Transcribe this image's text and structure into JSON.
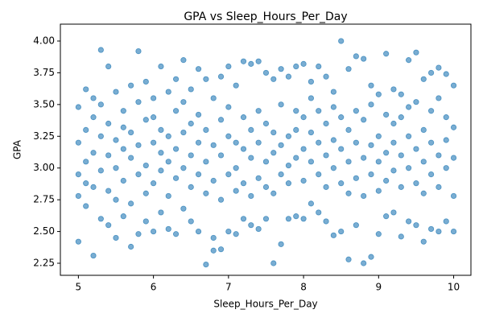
{
  "chart_data": {
    "type": "scatter",
    "title": "GPA vs Sleep_Hours_Per_Day",
    "x_label": "Sleep_Hours_Per_Day",
    "y_label": "GPA",
    "color": "#1f77b4",
    "grid": false,
    "xlim": [
      4.76,
      10.23
    ],
    "ylim": [
      2.155,
      4.133
    ],
    "xticks": [
      5,
      6,
      7,
      8,
      9,
      10
    ],
    "yticks": [
      2.25,
      {
        "value": 2.5,
        "label": "2.50"
      },
      2.75,
      {
        "value": 3.0,
        "label": "3.00"
      },
      3.25,
      {
        "value": 3.5,
        "label": "3.50"
      },
      3.75,
      {
        "value": 4.0,
        "label": "4.00"
      }
    ],
    "x": [
      5.0,
      5.0,
      5.0,
      5.0,
      5.0,
      5.1,
      5.1,
      5.1,
      5.1,
      5.1,
      5.2,
      5.2,
      5.2,
      5.2,
      5.2,
      5.3,
      5.3,
      5.3,
      5.3,
      5.3,
      5.4,
      5.4,
      5.4,
      5.4,
      5.4,
      5.5,
      5.5,
      5.5,
      5.5,
      5.5,
      5.6,
      5.6,
      5.6,
      5.6,
      5.6,
      5.7,
      5.7,
      5.7,
      5.7,
      5.7,
      5.8,
      5.8,
      5.8,
      5.8,
      5.8,
      5.9,
      5.9,
      5.9,
      5.9,
      5.9,
      6.0,
      6.0,
      6.0,
      6.0,
      6.0,
      6.1,
      6.1,
      6.1,
      6.1,
      6.1,
      6.2,
      6.2,
      6.2,
      6.2,
      6.2,
      6.3,
      6.3,
      6.3,
      6.3,
      6.3,
      6.4,
      6.4,
      6.4,
      6.4,
      6.4,
      6.5,
      6.5,
      6.5,
      6.5,
      6.5,
      6.6,
      6.6,
      6.6,
      6.6,
      6.6,
      6.7,
      6.7,
      6.7,
      6.7,
      6.7,
      6.8,
      6.8,
      6.8,
      6.8,
      6.8,
      6.9,
      6.9,
      6.9,
      6.9,
      6.9,
      7.0,
      7.0,
      7.0,
      7.0,
      7.0,
      7.1,
      7.1,
      7.1,
      7.1,
      7.1,
      7.2,
      7.2,
      7.2,
      7.2,
      7.2,
      7.3,
      7.3,
      7.3,
      7.3,
      7.3,
      7.4,
      7.4,
      7.4,
      7.4,
      7.4,
      7.5,
      7.5,
      7.5,
      7.5,
      7.5,
      7.6,
      7.6,
      7.6,
      7.6,
      7.6,
      7.7,
      7.7,
      7.7,
      7.7,
      7.7,
      7.8,
      7.8,
      7.8,
      7.8,
      7.8,
      7.9,
      7.9,
      7.9,
      7.9,
      7.9,
      8.0,
      8.0,
      8.0,
      8.0,
      8.0,
      8.1,
      8.1,
      8.1,
      8.1,
      8.1,
      8.2,
      8.2,
      8.2,
      8.2,
      8.2,
      8.3,
      8.3,
      8.3,
      8.3,
      8.3,
      8.4,
      8.4,
      8.4,
      8.4,
      8.4,
      8.5,
      8.5,
      8.5,
      8.5,
      8.5,
      8.6,
      8.6,
      8.6,
      8.6,
      8.6,
      8.7,
      8.7,
      8.7,
      8.7,
      8.7,
      8.8,
      8.8,
      8.8,
      8.8,
      8.8,
      8.9,
      8.9,
      8.9,
      8.9,
      8.9,
      9.0,
      9.0,
      9.0,
      9.0,
      9.0,
      9.1,
      9.1,
      9.1,
      9.1,
      9.1,
      9.2,
      9.2,
      9.2,
      9.2,
      9.2,
      9.3,
      9.3,
      9.3,
      9.3,
      9.3,
      9.4,
      9.4,
      9.4,
      9.4,
      9.4,
      9.5,
      9.5,
      9.5,
      9.5,
      9.5,
      9.6,
      9.6,
      9.6,
      9.6,
      9.6,
      9.7,
      9.7,
      9.7,
      9.7,
      9.7,
      9.8,
      9.8,
      9.8,
      9.8,
      9.8,
      9.9,
      9.9,
      9.9,
      9.9,
      9.9,
      10.0,
      10.0,
      10.0,
      10.0,
      10.0
    ],
    "values": [
      2.42,
      2.95,
      3.2,
      3.48,
      2.78,
      3.62,
      3.05,
      2.7,
      3.3,
      2.88,
      2.31,
      3.55,
      3.12,
      2.85,
      3.4,
      3.93,
      2.6,
      3.25,
      2.98,
      3.5,
      3.8,
      2.55,
      3.1,
      3.35,
      2.82,
      2.45,
      3.6,
      3.0,
      3.22,
      2.75,
      2.62,
      3.45,
      3.15,
      2.9,
      3.32,
      2.38,
      3.65,
      3.08,
      2.72,
      3.28,
      3.92,
      2.48,
      3.18,
      2.95,
      3.52,
      3.68,
      2.58,
      3.02,
      3.38,
      2.8,
      2.5,
      3.55,
      3.2,
      2.88,
      3.4,
      3.8,
      2.65,
      3.12,
      2.98,
      3.3,
      2.52,
      3.6,
      3.05,
      3.25,
      2.78,
      3.7,
      2.48,
      3.15,
      2.92,
      3.45,
      3.85,
      2.68,
      3.28,
      3.0,
      3.52,
      2.58,
      3.62,
      3.1,
      2.85,
      3.35,
      2.5,
      3.78,
      3.2,
      2.95,
      3.42,
      2.24,
      3.7,
      3.05,
      2.8,
      3.3,
      2.35,
      2.45,
      3.55,
      3.18,
      2.9,
      2.36,
      3.72,
      3.1,
      2.75,
      3.38,
      3.8,
      2.5,
      3.25,
      2.95,
      3.48,
      2.48,
      3.65,
      3.0,
      3.2,
      2.82,
      3.84,
      2.6,
      3.15,
      2.88,
      3.4,
      3.82,
      2.55,
      3.08,
      3.3,
      2.78,
      3.84,
      2.52,
      3.2,
      2.92,
      3.45,
      3.75,
      2.6,
      3.05,
      3.35,
      2.85,
      2.25,
      3.7,
      3.12,
      2.8,
      3.28,
      2.4,
      3.78,
      3.18,
      2.95,
      3.5,
      2.6,
      3.72,
      3.02,
      3.25,
      2.88,
      3.8,
      2.62,
      3.3,
      3.08,
      3.45,
      3.82,
      2.6,
      3.15,
      2.9,
      3.4,
      3.68,
      2.72,
      3.05,
      3.28,
      3.55,
      3.8,
      2.65,
      3.2,
      2.95,
      3.45,
      3.72,
      2.58,
      3.1,
      2.85,
      3.35,
      2.47,
      3.6,
      3.22,
      3.0,
      3.48,
      4.0,
      2.5,
      3.15,
      2.88,
      3.4,
      2.28,
      3.78,
      3.05,
      3.3,
      2.8,
      3.88,
      2.55,
      3.2,
      2.92,
      3.45,
      2.25,
      3.86,
      3.08,
      2.78,
      3.38,
      2.3,
      3.65,
      3.18,
      2.95,
      3.5,
      2.48,
      3.58,
      3.05,
      3.25,
      2.82,
      3.9,
      2.62,
      3.12,
      2.9,
      3.42,
      2.65,
      3.62,
      3.2,
      2.98,
      3.35,
      2.46,
      3.58,
      3.1,
      2.85,
      3.4,
      3.85,
      2.58,
      3.25,
      3.0,
      3.48,
      3.91,
      2.55,
      3.15,
      2.88,
      3.52,
      2.42,
      3.7,
      3.05,
      3.3,
      2.8,
      3.75,
      2.52,
      3.2,
      2.95,
      3.45,
      3.79,
      2.5,
      3.1,
      2.85,
      3.55,
      3.74,
      2.58,
      3.22,
      3.0,
      3.4,
      2.5,
      3.65,
      3.08,
      2.78,
      3.32
    ]
  }
}
